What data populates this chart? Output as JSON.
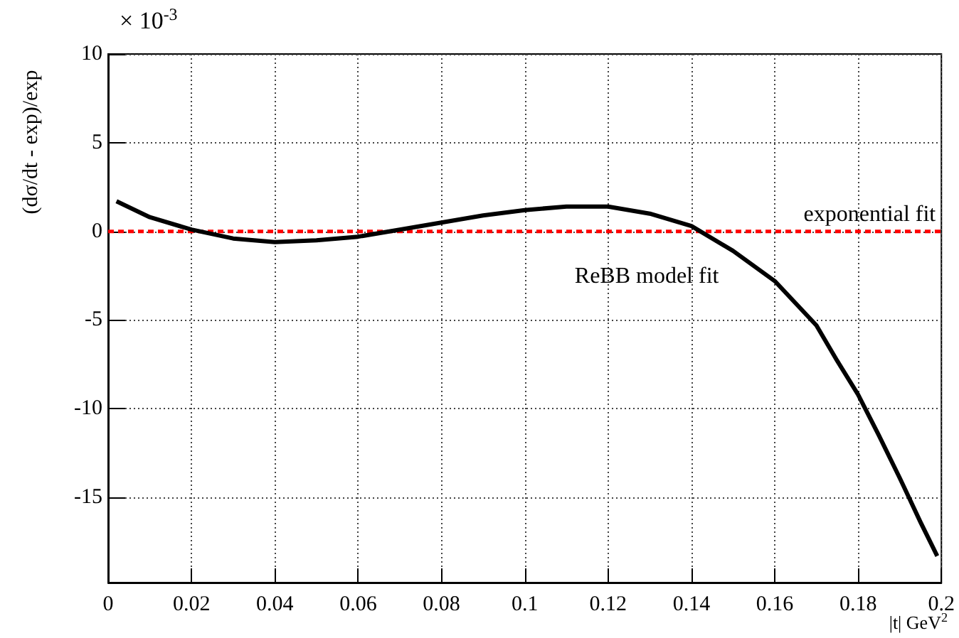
{
  "chart_data": {
    "type": "line",
    "xlabel": "|t| GeV$^{2}$",
    "ylabel": "(dσ/dt - exp)/exp",
    "annotations": [
      "× 10$^{-3}$"
    ],
    "x": [
      0.002,
      0.01,
      0.02,
      0.03,
      0.04,
      0.05,
      0.06,
      0.07,
      0.08,
      0.09,
      0.1,
      0.11,
      0.12,
      0.13,
      0.14,
      0.15,
      0.16,
      0.17,
      0.175,
      0.18,
      0.185,
      0.19,
      0.195,
      0.199
    ],
    "series": [
      {
        "name": "ReBB model fit",
        "color": "#000000",
        "line_style": "solid",
        "values": [
          1.7,
          0.8,
          0.1,
          -0.4,
          -0.6,
          -0.5,
          -0.3,
          0.1,
          0.5,
          0.9,
          1.2,
          1.4,
          1.4,
          1.0,
          0.3,
          -1.1,
          -2.8,
          -5.3,
          -7.3,
          -9.2,
          -11.5,
          -13.9,
          -16.4,
          -18.3
        ]
      },
      {
        "name": "exponential fit",
        "color": "#ff0000",
        "line_style": "dashed",
        "x": [
          0,
          0.2
        ],
        "values": [
          0,
          0
        ]
      }
    ],
    "xlim": [
      0,
      0.2
    ],
    "xticks": [
      0,
      0.02,
      0.04,
      0.06,
      0.08,
      0.1,
      0.12,
      0.14,
      0.16,
      0.18,
      0.2
    ],
    "ylim": [
      -19.8,
      10
    ],
    "yticks": [
      -15,
      -10,
      -5,
      0,
      5,
      10
    ],
    "grid": true,
    "legend": false,
    "marker": "none"
  }
}
